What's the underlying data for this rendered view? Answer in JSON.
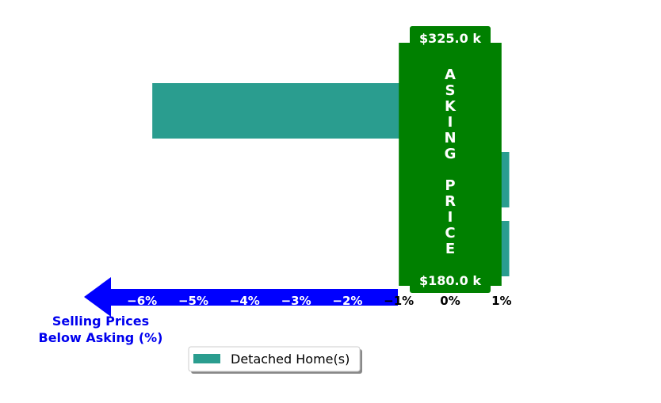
{
  "chart_data": {
    "type": "bar",
    "orientation": "horizontal",
    "x_ticks": [
      -6,
      -5,
      -4,
      -3,
      -2,
      -1,
      0,
      1
    ],
    "x_tick_labels": [
      "−6%",
      "−5%",
      "−4%",
      "−3%",
      "−2%",
      "−1%",
      "0%",
      "1%"
    ],
    "xlim": [
      -6.3,
      1.2
    ],
    "series": [
      {
        "name": "Detached Home(s)",
        "color": "#2a9d8f",
        "values": [
          -5.8,
          1.15,
          1.15
        ]
      }
    ],
    "asking_band": {
      "label": "ASKING PRICE",
      "color": "#008000",
      "x_range": [
        -1.0,
        1.0
      ],
      "top_label": "$325.0 k",
      "bottom_label": "$180.0 k"
    },
    "arrow_color": "#0000ff",
    "caption_lines": [
      "Selling Prices",
      "Below Asking (%)"
    ],
    "legend": {
      "label": "Detached Home(s)",
      "placement": "lower-center"
    }
  }
}
